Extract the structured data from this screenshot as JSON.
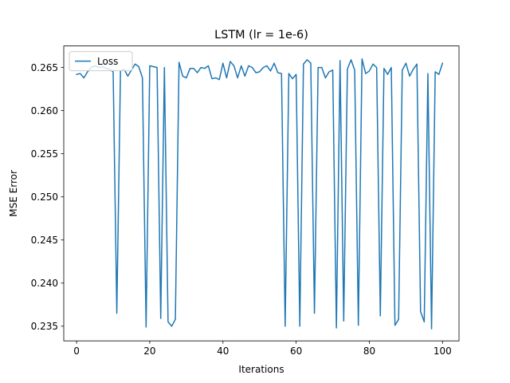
{
  "chart_data": {
    "type": "line",
    "title": "LSTM (lr = 1e-6)",
    "xlabel": "Iterations",
    "ylabel": "MSE Error",
    "xlim": [
      -3.5,
      104.5
    ],
    "ylim": [
      0.2333,
      0.2675
    ],
    "xticks": [
      0,
      20,
      40,
      60,
      80,
      100
    ],
    "yticks": [
      0.235,
      0.24,
      0.245,
      0.25,
      0.255,
      0.26,
      0.265
    ],
    "ytick_labels": [
      "0.235",
      "0.240",
      "0.245",
      "0.250",
      "0.255",
      "0.260",
      "0.265"
    ],
    "grid": false,
    "legend_position": "upper-left",
    "series": [
      {
        "name": "Loss",
        "color": "#1f77b4",
        "x": [
          0,
          1,
          2,
          3,
          4,
          5,
          6,
          7,
          8,
          9,
          10,
          11,
          12,
          13,
          14,
          15,
          16,
          17,
          18,
          19,
          20,
          21,
          22,
          23,
          24,
          25,
          26,
          27,
          28,
          29,
          30,
          31,
          32,
          33,
          34,
          35,
          36,
          37,
          38,
          39,
          40,
          41,
          42,
          43,
          44,
          45,
          46,
          47,
          48,
          49,
          50,
          51,
          52,
          53,
          54,
          55,
          56,
          57,
          58,
          59,
          60,
          61,
          62,
          63,
          64,
          65,
          66,
          67,
          68,
          69,
          70,
          71,
          72,
          73,
          74,
          75,
          76,
          77,
          78,
          79,
          80,
          81,
          82,
          83,
          84,
          85,
          86,
          87,
          88,
          89,
          90,
          91,
          92,
          93,
          94,
          95,
          96,
          97,
          98,
          99,
          100
        ],
        "values": [
          0.2642,
          0.2643,
          0.2638,
          0.2645,
          0.265,
          0.2652,
          0.265,
          0.2651,
          0.2649,
          0.2648,
          0.2645,
          0.2365,
          0.2646,
          0.2648,
          0.264,
          0.2647,
          0.2654,
          0.2651,
          0.2638,
          0.2349,
          0.2652,
          0.2651,
          0.265,
          0.2359,
          0.265,
          0.2355,
          0.235,
          0.2358,
          0.2656,
          0.264,
          0.2638,
          0.2649,
          0.2649,
          0.2644,
          0.265,
          0.2649,
          0.2652,
          0.2637,
          0.2638,
          0.2636,
          0.2655,
          0.2638,
          0.2657,
          0.2652,
          0.2638,
          0.2652,
          0.264,
          0.2652,
          0.265,
          0.2644,
          0.2645,
          0.265,
          0.2652,
          0.2646,
          0.2655,
          0.2644,
          0.2643,
          0.235,
          0.2643,
          0.2637,
          0.2642,
          0.235,
          0.2654,
          0.2659,
          0.2655,
          0.2365,
          0.265,
          0.265,
          0.2638,
          0.2645,
          0.2647,
          0.2348,
          0.2658,
          0.2356,
          0.2648,
          0.2659,
          0.2647,
          0.2351,
          0.266,
          0.2643,
          0.2646,
          0.2654,
          0.265,
          0.2362,
          0.2649,
          0.2642,
          0.265,
          0.2351,
          0.2358,
          0.2647,
          0.2655,
          0.264,
          0.2648,
          0.2654,
          0.2367,
          0.2355,
          0.2643,
          0.2347,
          0.2645,
          0.2642,
          0.2655
        ]
      }
    ]
  }
}
